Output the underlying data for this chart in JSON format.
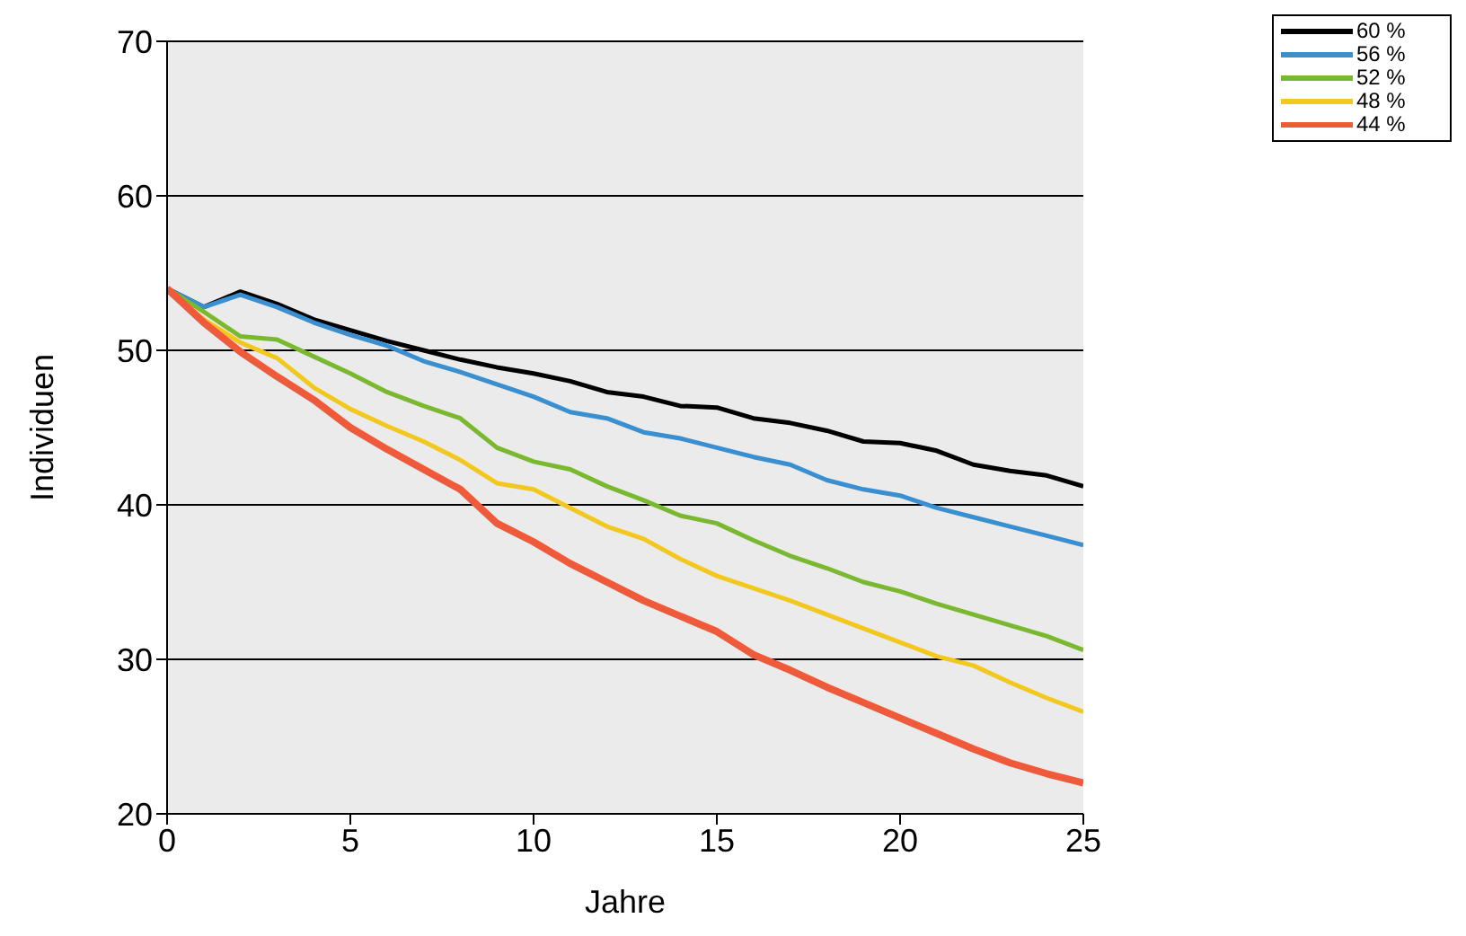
{
  "chart_data": {
    "type": "line",
    "xlabel": "Jahre",
    "ylabel": "Individuen",
    "x": [
      0,
      1,
      2,
      3,
      4,
      5,
      6,
      7,
      8,
      9,
      10,
      11,
      12,
      13,
      14,
      15,
      16,
      17,
      18,
      19,
      20,
      21,
      22,
      23,
      24,
      25
    ],
    "xlim": [
      0,
      25
    ],
    "xticks": [
      0,
      5,
      10,
      15,
      20,
      25
    ],
    "ylim": [
      20,
      70
    ],
    "yticks": [
      20,
      30,
      40,
      50,
      60,
      70
    ],
    "grid": "y",
    "legend": "top right",
    "marker": "none",
    "line_style": "solid",
    "series": [
      {
        "name": "60 %",
        "color": "#000000",
        "values": [
          54,
          52.8,
          53.8,
          53,
          52,
          51.3,
          50.6,
          50,
          49.4,
          48.9,
          48.5,
          48,
          47.3,
          47,
          46.4,
          46.3,
          45.6,
          45.3,
          44.8,
          44.1,
          44,
          43.5,
          42.6,
          42.2,
          41.9,
          41.2
        ]
      },
      {
        "name": "56 %",
        "color": "#3a8fd0",
        "values": [
          54,
          52.8,
          53.6,
          52.8,
          51.8,
          51,
          50.3,
          49.3,
          48.6,
          47.8,
          47,
          46,
          45.6,
          44.7,
          44.3,
          43.7,
          43.1,
          42.6,
          41.6,
          41,
          40.6,
          39.8,
          39.2,
          38.6,
          38,
          37.4
        ]
      },
      {
        "name": "52 %",
        "color": "#7ab830",
        "values": [
          54,
          52.5,
          50.9,
          50.7,
          49.6,
          48.5,
          47.3,
          46.4,
          45.6,
          43.7,
          42.8,
          42.3,
          41.2,
          40.3,
          39.3,
          38.8,
          37.7,
          36.7,
          35.9,
          35,
          34.4,
          33.6,
          32.9,
          32.2,
          31.5,
          30.6
        ]
      },
      {
        "name": "48 %",
        "color": "#f2c81e",
        "values": [
          54,
          52,
          50.5,
          49.5,
          47.6,
          46.2,
          45.1,
          44.1,
          42.9,
          41.4,
          41,
          39.8,
          38.6,
          37.8,
          36.5,
          35.4,
          34.6,
          33.8,
          32.9,
          32,
          31.1,
          30.2,
          29.6,
          28.5,
          27.5,
          26.6
        ]
      },
      {
        "name": "44 %",
        "color": "#ef5a3a",
        "values": [
          54,
          51.8,
          49.9,
          48.3,
          46.8,
          45,
          43.6,
          42.3,
          41,
          38.8,
          37.6,
          36.2,
          35,
          33.8,
          32.8,
          31.8,
          30.3,
          29.3,
          28.2,
          27.2,
          26.2,
          25.2,
          24.2,
          23.3,
          22.6,
          22
        ]
      }
    ]
  }
}
